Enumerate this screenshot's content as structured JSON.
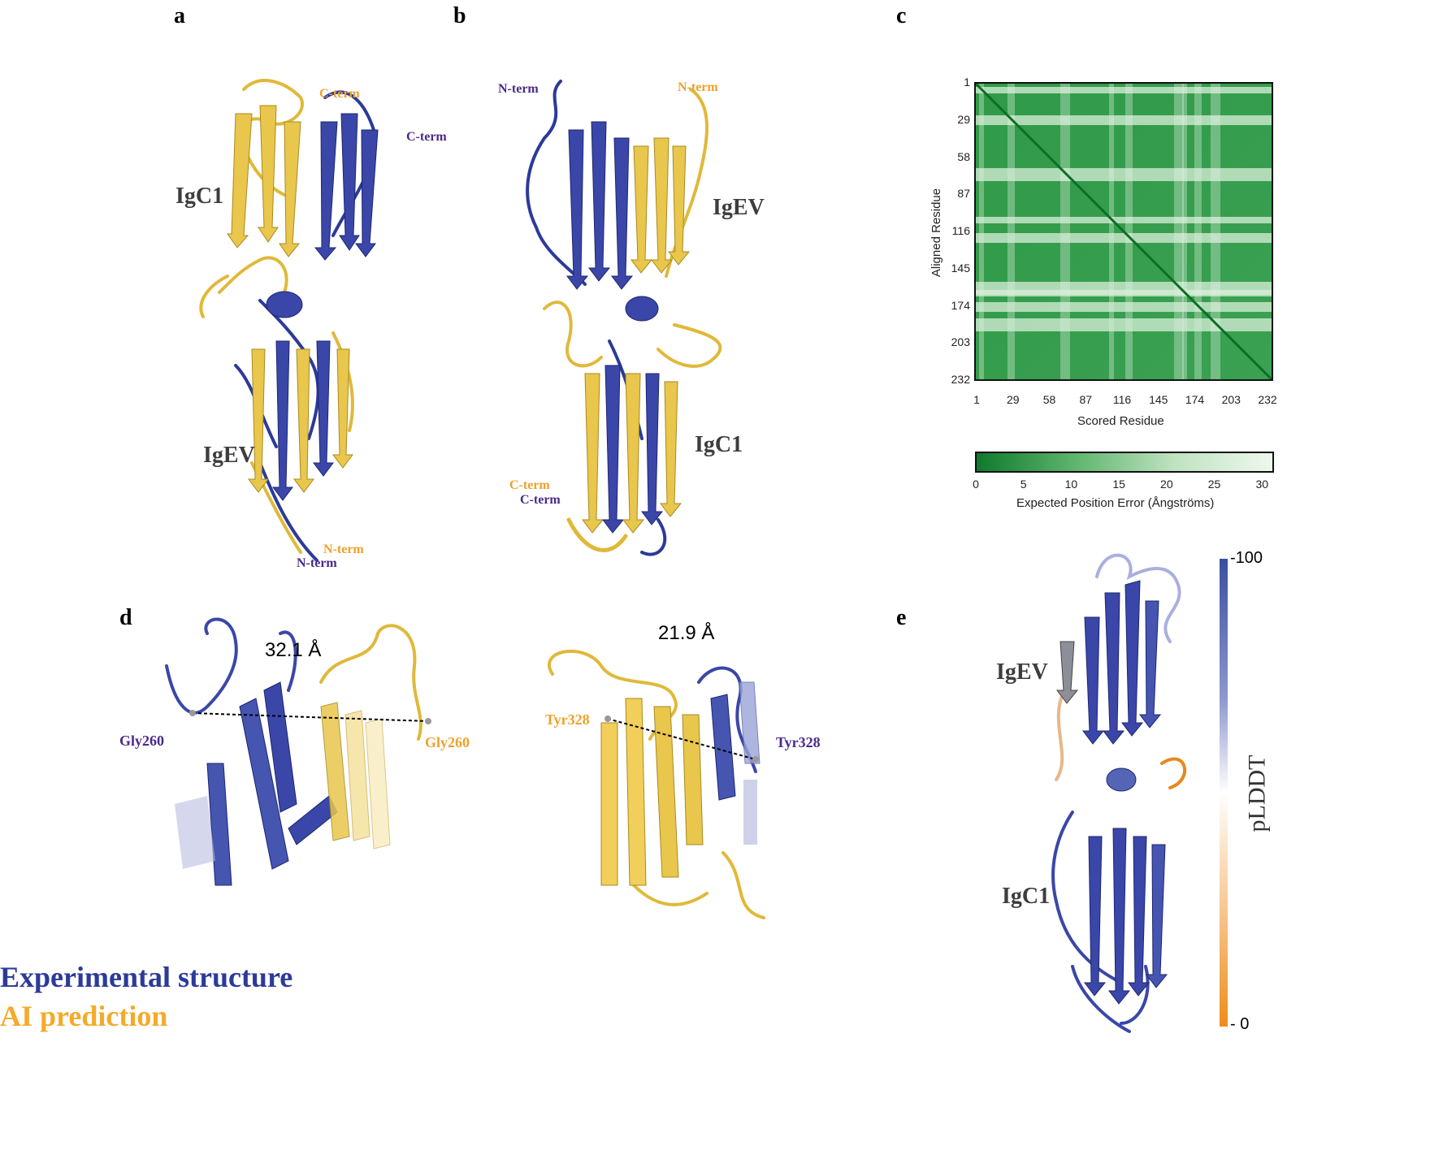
{
  "panels": {
    "a": {
      "letter": "a",
      "domain_top": "IgC1",
      "domain_bottom": "IgEV",
      "cterm_ai": "C-term",
      "cterm_exp": "C-term",
      "nterm_ai": "N-term",
      "nterm_exp": "N-term"
    },
    "b": {
      "letter": "b",
      "domain_top": "IgEV",
      "domain_bottom": "IgC1",
      "nterm_exp": "N-term",
      "nterm_ai": "N-term",
      "cterm_ai": "C-term",
      "cterm_exp": "C-term"
    },
    "c": {
      "letter": "c"
    },
    "d": {
      "letter": "d",
      "left_distance": "32.1 Å",
      "left_res_exp": "Gly260",
      "left_res_ai": "Gly260",
      "right_distance": "21.9 Å",
      "right_res_ai": "Tyr328",
      "right_res_exp": "Tyr328"
    },
    "e": {
      "letter": "e",
      "domain_top": "IgEV",
      "domain_bottom": "IgC1",
      "colorbar_label": "pLDDT",
      "colorbar_max": "100",
      "colorbar_min": "0"
    }
  },
  "legend": {
    "experimental": "Experimental structure",
    "ai": "AI prediction"
  },
  "colors": {
    "experimental": "#2c3a99",
    "ai": "#f0c64a",
    "pae_dark": "#0e7a2c",
    "pae_light": "#e6f4e6",
    "plddt_high": "#3a4fa0",
    "plddt_low": "#f08c1a"
  },
  "chart_data": {
    "type": "heatmap",
    "xlabel": "Scored Residue",
    "ylabel": "Aligned Residue",
    "x_ticks": [
      "1",
      "29",
      "58",
      "87",
      "116",
      "145",
      "174",
      "203",
      "232"
    ],
    "y_ticks": [
      "1",
      "29",
      "58",
      "87",
      "116",
      "145",
      "174",
      "203",
      "232"
    ],
    "colorbar": {
      "label": "Expected Position Error (Ångströms)",
      "ticks": [
        "0",
        "5",
        "10",
        "15",
        "20",
        "25",
        "30"
      ],
      "range": [
        0,
        31
      ]
    }
  }
}
